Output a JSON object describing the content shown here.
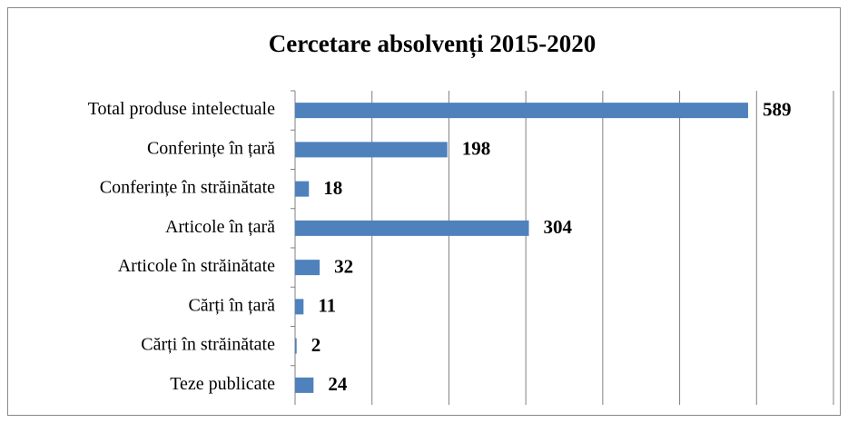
{
  "chart_data": {
    "type": "bar",
    "orientation": "horizontal",
    "title": "Cercetare absolvenți 2015-2020",
    "categories": [
      "Total produse intelectuale",
      "Conferințe în țară",
      "Conferințe în străinătate",
      "Articole în țară",
      "Articole în străinătate",
      "Cărți în țară",
      "Cărți în străinătate",
      "Teze publicate"
    ],
    "values": [
      589,
      198,
      18,
      304,
      32,
      11,
      2,
      24
    ],
    "color": "#4f81bd",
    "xlim": [
      0,
      700
    ],
    "xticks": [
      0,
      100,
      200,
      300,
      400,
      500,
      600,
      700
    ],
    "grid": true
  }
}
